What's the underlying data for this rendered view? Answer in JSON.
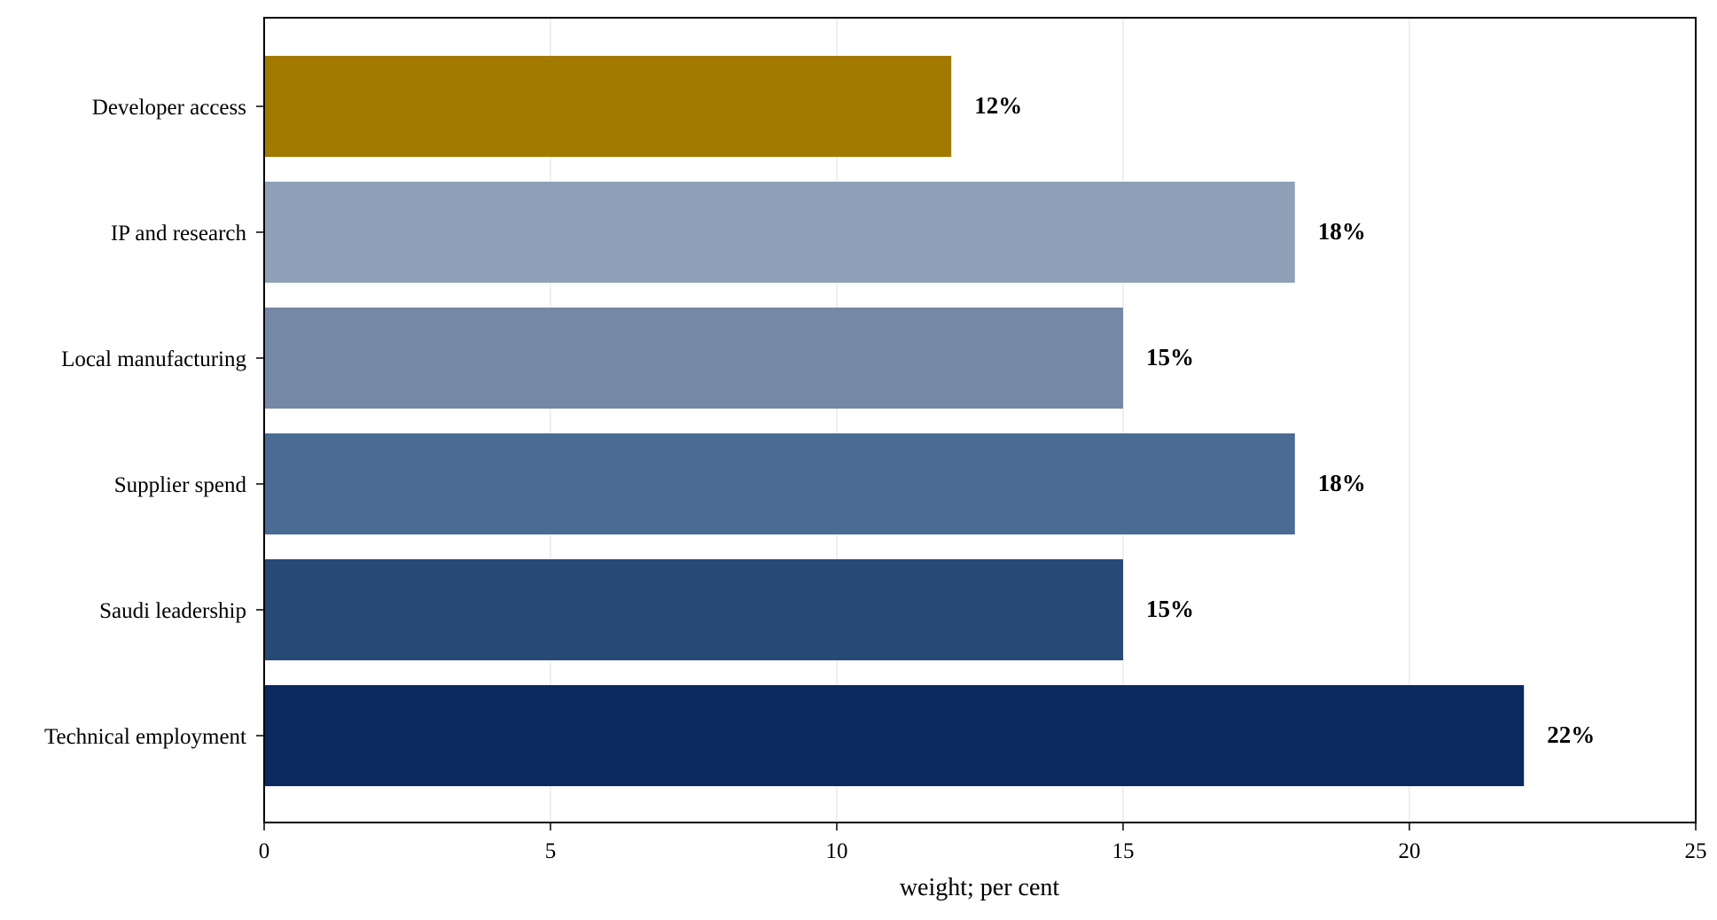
{
  "chart_data": {
    "type": "bar",
    "orientation": "horizontal",
    "title": "",
    "xlabel": "weight; per cent",
    "ylabel": "",
    "xlim": [
      0,
      25
    ],
    "xticks": [
      0,
      5,
      10,
      15,
      20,
      25
    ],
    "xtick_labels": [
      "0",
      "5",
      "10",
      "15",
      "20",
      "25"
    ],
    "grid": "x",
    "legend": "none",
    "categories": [
      "Developer access",
      "IP and research",
      "Local manufacturing",
      "Supplier spend",
      "Saudi leadership",
      "Technical employment"
    ],
    "values": [
      12,
      18,
      15,
      18,
      15,
      22
    ],
    "data_labels": [
      "12%",
      "18%",
      "15%",
      "18%",
      "15%",
      "22%"
    ],
    "colors": [
      "#a27a00",
      "#8fa1b8",
      "#7589a7",
      "#4a6b94",
      "#264a75",
      "#0a295e"
    ],
    "grid_color": "#e8eaed",
    "axis_color": "#000000"
  }
}
